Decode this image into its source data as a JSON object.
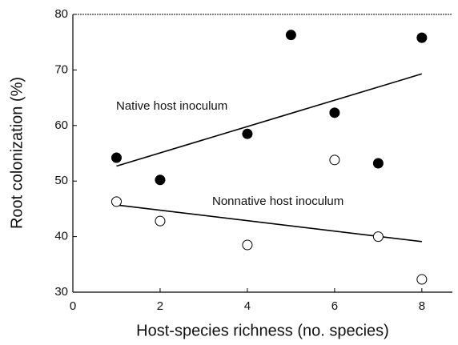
{
  "chart_data": {
    "type": "scatter",
    "x_label": "Host-species richness (no. species)",
    "y_label": "Root colonization (%)",
    "xlim": [
      0,
      8.7
    ],
    "xticks": [
      0,
      2,
      4,
      6,
      8
    ],
    "ylim": [
      30,
      80
    ],
    "yticks": [
      30,
      40,
      50,
      60,
      70,
      80
    ],
    "series": [
      {
        "name": "Native host inoculum",
        "color": "#000000",
        "fill": "#000000",
        "x": [
          1,
          2,
          4,
          5,
          6,
          7,
          8
        ],
        "values": [
          54.2,
          50.2,
          58.5,
          76.3,
          62.3,
          53.2,
          75.8
        ],
        "trend": {
          "x": [
            1,
            8
          ],
          "values": [
            52.7,
            69.3
          ]
        }
      },
      {
        "name": "Nonnative host inoculum",
        "color": "#000000",
        "fill": "#ffffff",
        "x": [
          1,
          2,
          4,
          6,
          7,
          8
        ],
        "values": [
          46.3,
          42.8,
          38.5,
          53.8,
          40.0,
          32.3
        ],
        "trend": {
          "x": [
            1,
            8
          ],
          "values": [
            45.7,
            39.1
          ]
        }
      }
    ]
  }
}
